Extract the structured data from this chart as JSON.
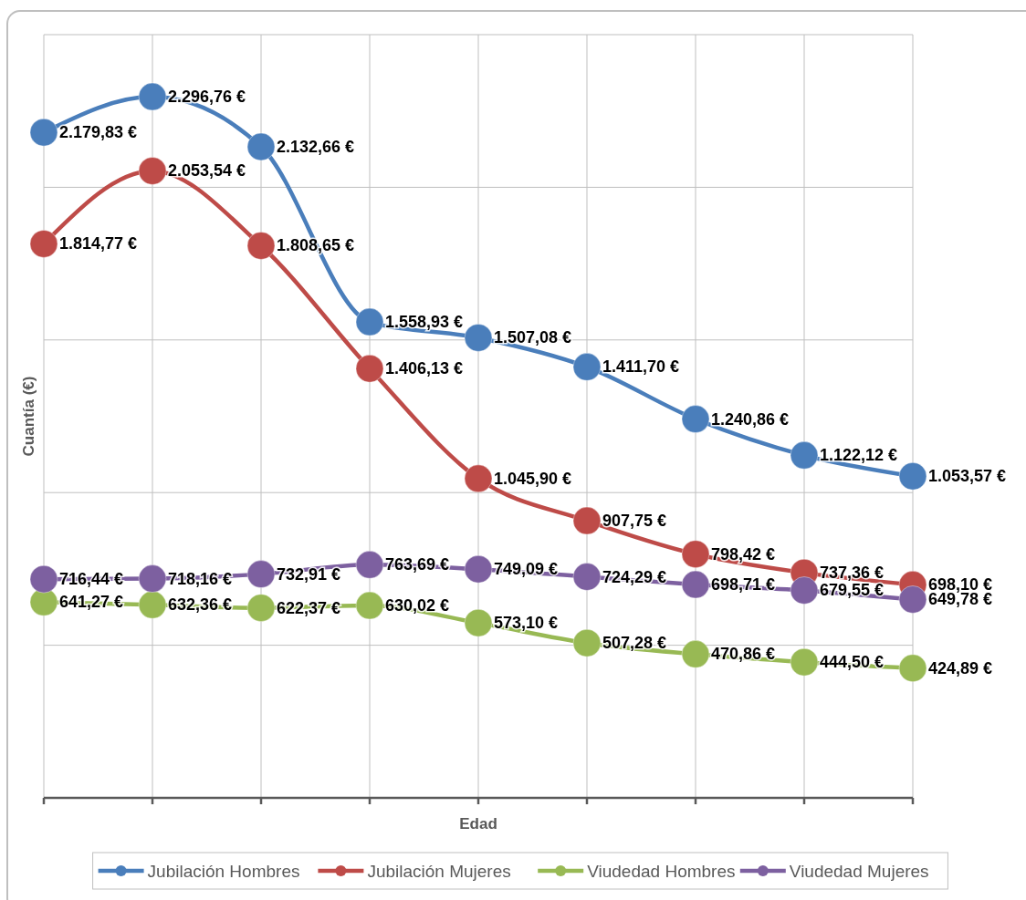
{
  "chart_data": {
    "type": "line",
    "xlabel": "Edad",
    "ylabel": "Cuantía (€)",
    "categories": [
      null,
      null,
      null,
      null,
      null,
      null,
      null,
      null,
      null
    ],
    "ylim": [
      0,
      2500
    ],
    "yticks": [
      {
        "value": 0,
        "label": null
      },
      {
        "value": 500,
        "label": null
      },
      {
        "value": 1000,
        "label": null
      },
      {
        "value": 1500,
        "label": null
      },
      {
        "value": 2000,
        "label": null
      },
      {
        "value": 2500,
        "label": null
      }
    ],
    "grid": true,
    "legend": "bottom",
    "marker": "circle",
    "line_style": "solid",
    "series": [
      {
        "name": "Jubilación Hombres",
        "color": "#4a7ebb",
        "values": [
          2179.83,
          2296.76,
          2132.66,
          1558.93,
          1507.08,
          1411.7,
          1240.86,
          1122.12,
          1053.57
        ],
        "value_labels": [
          "2.179,83 €",
          "2.296,76 €",
          "2.132,66 €",
          "1.558,93 €",
          "1.507,08 €",
          "1.411,70 €",
          "1.240,86 €",
          "1.122,12 €",
          "1.053,57 €"
        ]
      },
      {
        "name": "Jubilación Mujeres",
        "color": "#be4b48",
        "values": [
          1814.77,
          2053.54,
          1808.65,
          1406.13,
          1045.9,
          907.75,
          798.42,
          737.36,
          698.1
        ],
        "value_labels": [
          "1.814,77 €",
          "2.053,54 €",
          "1.808,65 €",
          "1.406,13 €",
          "1.045,90 €",
          "907,75 €",
          "798,42 €",
          "737,36 €",
          "698,10 €"
        ]
      },
      {
        "name": "Viudedad Hombres",
        "color": "#98b954",
        "values": [
          641.27,
          632.36,
          622.37,
          630.02,
          573.1,
          507.28,
          470.86,
          444.5,
          424.89
        ],
        "value_labels": [
          "641,27 €",
          "632,36 €",
          "622,37 €",
          "630,02 €",
          "573,10 €",
          "507,28 €",
          "470,86 €",
          "444,50 €",
          "424,89 €"
        ]
      },
      {
        "name": "Viudedad Mujeres",
        "color": "#7d60a0",
        "values": [
          716.44,
          718.16,
          732.91,
          763.69,
          749.09,
          724.29,
          698.71,
          679.55,
          649.78
        ],
        "value_labels": [
          "716,44 €",
          "718,16 €",
          "732,91 €",
          "763,69 €",
          "749,09 €",
          "724,29 €",
          "698,71 €",
          "679,55 €",
          "649,78 €"
        ]
      }
    ]
  }
}
